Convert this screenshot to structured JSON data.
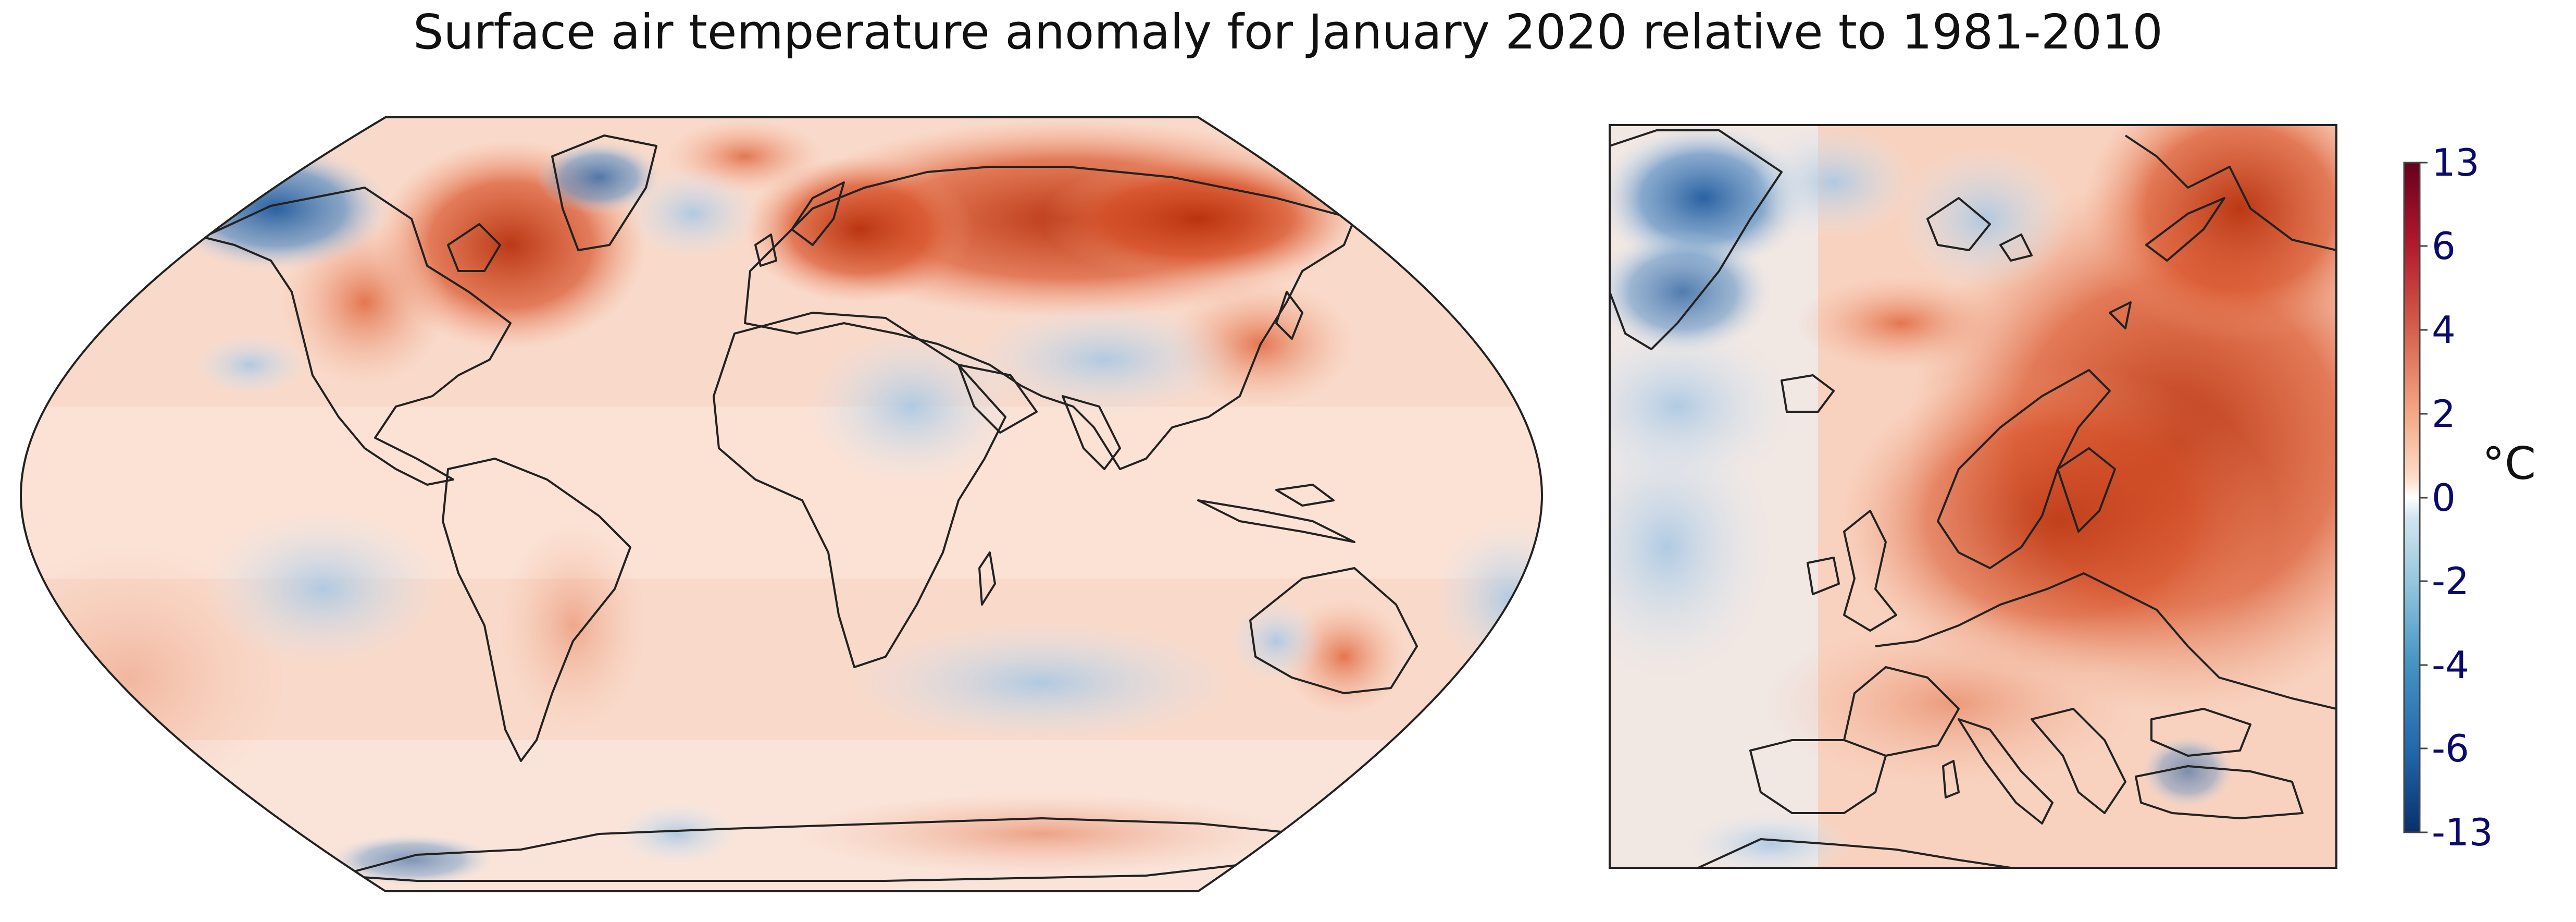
{
  "figure": {
    "title": "Surface air temperature anomaly for January 2020 relative to 1981-2010"
  },
  "panels": [
    {
      "id": "global",
      "projection": "Robinson",
      "region": "Global"
    },
    {
      "id": "europe",
      "projection": "rectangular",
      "region": "Europe & North Atlantic"
    }
  ],
  "colorbar": {
    "unit": "°C",
    "ticks": [
      "13",
      "6",
      "4",
      "2",
      "0",
      "-2",
      "-4",
      "-6",
      "-13"
    ],
    "range": [
      -13,
      13
    ],
    "colors": [
      "#08306b",
      "#2166ac",
      "#4393c3",
      "#92c5de",
      "#d1e5f0",
      "#ffffff",
      "#fddbc7",
      "#f4a582",
      "#d6604d",
      "#b2182b",
      "#67001f"
    ]
  },
  "palette": {
    "strong_warm": "#c93a15",
    "warm": "#e8825e",
    "mild_warm": "#f7c3ac",
    "neutral": "#fbe6dc",
    "mild_cold": "#d7e5f2",
    "cold": "#7eaed6",
    "strong_cold": "#1f5a9e"
  }
}
